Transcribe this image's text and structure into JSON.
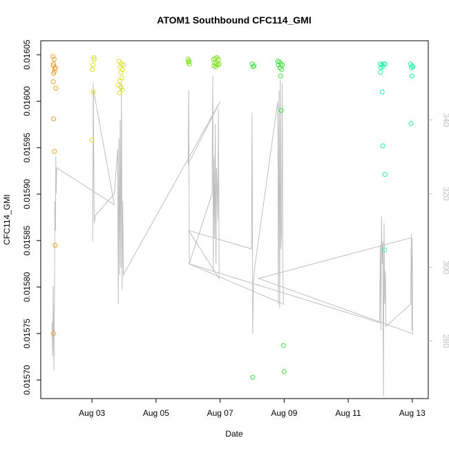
{
  "chart_data": {
    "type": "scatter",
    "title": "ATOM1 Southbound CFC114_GMI",
    "xlabel": "Date",
    "ylabel": "CFC114_GMI",
    "xlim": [
      1.4,
      13.5
    ],
    "ylim": [
      0.01568,
      0.016065
    ],
    "y2lim": [
      264.4,
      361.5
    ],
    "x_ticks": [
      {
        "value": 3,
        "label": "Aug 03"
      },
      {
        "value": 5,
        "label": "Aug 05"
      },
      {
        "value": 7,
        "label": "Aug 07"
      },
      {
        "value": 9,
        "label": "Aug 09"
      },
      {
        "value": 11,
        "label": "Aug 11"
      },
      {
        "value": 13,
        "label": "Aug 13"
      }
    ],
    "y_ticks": [
      {
        "value": 0.0157,
        "label": "0.01570"
      },
      {
        "value": 0.01575,
        "label": "0.01575"
      },
      {
        "value": 0.0158,
        "label": "0.01580"
      },
      {
        "value": 0.01585,
        "label": "0.01585"
      },
      {
        "value": 0.0159,
        "label": "0.01590"
      },
      {
        "value": 0.01595,
        "label": "0.01595"
      },
      {
        "value": 0.016,
        "label": "0.01600"
      },
      {
        "value": 0.01605,
        "label": "0.01605"
      }
    ],
    "y2_ticks": [
      {
        "value": 280,
        "label": "280"
      },
      {
        "value": 300,
        "label": "300"
      },
      {
        "value": 320,
        "label": "320"
      },
      {
        "value": 340,
        "label": "340"
      }
    ],
    "grid": false,
    "colors": {
      "line": "#bebebe",
      "axis": "#000000",
      "right_axis": "#bfbfbf"
    },
    "scatter_groups": [
      {
        "color": "#f0a030",
        "points": [
          [
            1.78,
            0.016048
          ],
          [
            1.82,
            0.016045
          ],
          [
            1.8,
            0.01604
          ],
          [
            1.79,
            0.016038
          ],
          [
            1.84,
            0.016035
          ],
          [
            1.86,
            0.016036
          ],
          [
            1.8,
            0.01603
          ],
          [
            1.83,
            0.016032
          ],
          [
            1.79,
            0.016021
          ],
          [
            1.87,
            0.016014
          ],
          [
            1.8,
            0.015981
          ],
          [
            1.83,
            0.015946
          ],
          [
            1.85,
            0.015845
          ],
          [
            1.8,
            0.01575
          ]
        ]
      },
      {
        "color": "#d8e020",
        "points": [
          [
            3.06,
            0.016047
          ],
          [
            3.07,
            0.016045
          ],
          [
            3.03,
            0.016039
          ],
          [
            3.01,
            0.016034
          ],
          [
            3.04,
            0.01601
          ],
          [
            2.99,
            0.015958
          ],
          [
            3.85,
            0.016043
          ],
          [
            3.92,
            0.01604
          ],
          [
            3.98,
            0.016039
          ],
          [
            3.88,
            0.016037
          ],
          [
            3.95,
            0.016034
          ],
          [
            3.9,
            0.016031
          ],
          [
            3.93,
            0.016025
          ],
          [
            3.87,
            0.016022
          ],
          [
            3.82,
            0.016017
          ],
          [
            3.91,
            0.016015
          ],
          [
            3.94,
            0.016012
          ],
          [
            3.86,
            0.016009
          ]
        ]
      },
      {
        "color": "#7ee020",
        "points": [
          [
            6.0,
            0.016045
          ],
          [
            6.03,
            0.016043
          ],
          [
            6.01,
            0.016042
          ],
          [
            6.04,
            0.01604
          ],
          [
            6.8,
            0.016045
          ],
          [
            6.85,
            0.016046
          ],
          [
            6.9,
            0.016047
          ],
          [
            6.95,
            0.016045
          ],
          [
            6.83,
            0.016041
          ],
          [
            6.88,
            0.01604
          ],
          [
            6.93,
            0.016039
          ],
          [
            6.97,
            0.01604
          ],
          [
            6.81,
            0.016038
          ],
          [
            6.86,
            0.016037
          ]
        ]
      },
      {
        "color": "#3ee040",
        "points": [
          [
            8.0,
            0.01604
          ],
          [
            8.06,
            0.016038
          ],
          [
            8.03,
            0.016037
          ],
          [
            8.8,
            0.016043
          ],
          [
            8.85,
            0.016042
          ],
          [
            8.9,
            0.01604
          ],
          [
            8.95,
            0.016039
          ],
          [
            8.82,
            0.016039
          ],
          [
            8.87,
            0.016036
          ],
          [
            8.92,
            0.016034
          ],
          [
            8.89,
            0.016027
          ],
          [
            8.91,
            0.01599
          ],
          [
            8.98,
            0.015737
          ],
          [
            9.0,
            0.015709
          ],
          [
            8.02,
            0.015703
          ]
        ]
      },
      {
        "color": "#20f0a8",
        "points": [
          [
            12.0,
            0.01604
          ],
          [
            12.05,
            0.016039
          ],
          [
            12.1,
            0.01604
          ],
          [
            12.15,
            0.01604
          ],
          [
            12.02,
            0.016036
          ],
          [
            12.08,
            0.016037
          ],
          [
            12.01,
            0.016031
          ],
          [
            12.06,
            0.01601
          ],
          [
            12.08,
            0.015952
          ],
          [
            12.15,
            0.015921
          ],
          [
            12.13,
            0.01584
          ],
          [
            12.95,
            0.01604
          ],
          [
            13.0,
            0.016038
          ],
          [
            12.97,
            0.016036
          ],
          [
            13.02,
            0.016037
          ],
          [
            12.99,
            0.016027
          ],
          [
            12.96,
            0.015976
          ]
        ]
      }
    ],
    "line_series": {
      "name": "",
      "axis": "right",
      "points": [
        [
          1.75,
          285
        ],
        [
          1.77,
          276
        ],
        [
          1.79,
          295
        ],
        [
          1.81,
          272
        ],
        [
          1.83,
          290
        ],
        [
          1.84,
          318
        ],
        [
          1.86,
          310
        ],
        [
          1.87,
          330
        ],
        [
          1.88,
          320
        ],
        [
          1.89,
          325
        ],
        [
          1.9,
          327
        ],
        [
          3.7,
          317
        ],
        [
          3.05,
          348
        ],
        [
          3.02,
          307
        ],
        [
          3.04,
          350
        ],
        [
          3.07,
          312
        ],
        [
          3.1,
          314
        ],
        [
          3.7,
          320
        ],
        [
          3.8,
          332
        ],
        [
          3.82,
          290
        ],
        [
          3.84,
          335
        ],
        [
          3.86,
          298
        ],
        [
          3.88,
          340
        ],
        [
          3.9,
          300
        ],
        [
          3.92,
          350
        ],
        [
          3.94,
          294
        ],
        [
          3.96,
          318
        ],
        [
          3.98,
          298
        ],
        [
          7.0,
          345
        ],
        [
          6.0,
          328
        ],
        [
          6.02,
          348
        ],
        [
          6.04,
          301
        ],
        [
          6.75,
          320
        ],
        [
          6.77,
          352
        ],
        [
          6.79,
          299
        ],
        [
          6.81,
          330
        ],
        [
          6.83,
          308
        ],
        [
          6.85,
          339
        ],
        [
          6.87,
          301
        ],
        [
          6.89,
          327
        ],
        [
          6.91,
          321
        ],
        [
          6.93,
          313
        ],
        [
          6.95,
          343
        ],
        [
          6.97,
          297
        ],
        [
          6.02,
          310
        ],
        [
          7.98,
          305
        ],
        [
          8.0,
          342
        ],
        [
          8.02,
          282
        ],
        [
          8.04,
          296
        ],
        [
          8.06,
          298
        ],
        [
          8.08,
          300
        ],
        [
          8.8,
          345
        ],
        [
          8.82,
          290
        ],
        [
          8.84,
          348
        ],
        [
          8.86,
          289
        ],
        [
          8.88,
          351
        ],
        [
          8.9,
          305
        ],
        [
          8.92,
          310
        ],
        [
          8.94,
          350
        ],
        [
          8.96,
          300
        ],
        [
          8.98,
          290
        ],
        [
          6.02,
          301
        ],
        [
          11.98,
          285
        ],
        [
          12.0,
          306
        ],
        [
          12.02,
          283
        ],
        [
          12.04,
          314
        ],
        [
          12.06,
          301
        ],
        [
          12.08,
          307
        ],
        [
          12.1,
          265
        ],
        [
          12.12,
          312
        ],
        [
          12.14,
          290
        ],
        [
          12.16,
          299
        ],
        [
          12.18,
          284
        ],
        [
          12.95,
          290
        ],
        [
          12.97,
          309
        ],
        [
          12.99,
          283
        ],
        [
          13.0,
          308
        ],
        [
          13.01,
          282
        ],
        [
          8.2,
          297
        ],
        [
          12.95,
          308
        ]
      ]
    }
  }
}
